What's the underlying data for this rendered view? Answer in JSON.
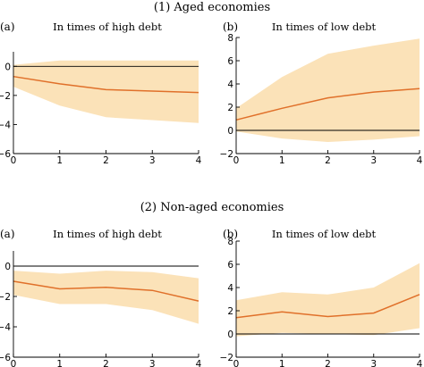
{
  "section_titles": [
    "(1) Aged economies",
    "(2) Non-aged economies"
  ],
  "chart_data": [
    {
      "type": "line",
      "tag": "(a)",
      "title": "In times of high debt",
      "x": [
        0,
        1,
        2,
        3,
        4
      ],
      "xticks": [
        0,
        1,
        2,
        3,
        4
      ],
      "ylim": [
        -6,
        1
      ],
      "yticks": [
        -6,
        -4,
        -2,
        0
      ],
      "reference_line": 0,
      "series": [
        {
          "values": [
            -0.7,
            -1.2,
            -1.6,
            -1.7,
            -1.8
          ],
          "lower": [
            -1.4,
            -2.7,
            -3.5,
            -3.7,
            -3.9
          ],
          "upper": [
            0.1,
            0.4,
            0.4,
            0.4,
            0.4
          ]
        }
      ]
    },
    {
      "type": "line",
      "tag": "(b)",
      "title": "In times of low debt",
      "x": [
        0,
        1,
        2,
        3,
        4
      ],
      "xticks": [
        0,
        1,
        2,
        3,
        4
      ],
      "ylim": [
        -2,
        8
      ],
      "yticks": [
        -2,
        0,
        2,
        4,
        6,
        8
      ],
      "reference_line": 0,
      "series": [
        {
          "values": [
            0.9,
            1.9,
            2.8,
            3.3,
            3.6
          ],
          "lower": [
            -0.1,
            -0.7,
            -1.0,
            -0.8,
            -0.5
          ],
          "upper": [
            1.9,
            4.6,
            6.6,
            7.3,
            7.9
          ]
        }
      ]
    },
    {
      "type": "line",
      "tag": "(a)",
      "title": "In times of high debt",
      "x": [
        0,
        1,
        2,
        3,
        4
      ],
      "xticks": [
        0,
        1,
        2,
        3,
        4
      ],
      "ylim": [
        -6,
        1
      ],
      "yticks": [
        -6,
        -4,
        -2,
        0
      ],
      "reference_line": 0,
      "series": [
        {
          "values": [
            -1.0,
            -1.5,
            -1.4,
            -1.6,
            -2.3
          ],
          "lower": [
            -1.9,
            -2.5,
            -2.5,
            -2.9,
            -3.8
          ],
          "upper": [
            -0.3,
            -0.5,
            -0.3,
            -0.4,
            -0.8
          ]
        }
      ]
    },
    {
      "type": "line",
      "tag": "(b)",
      "title": "In times of low debt",
      "x": [
        0,
        1,
        2,
        3,
        4
      ],
      "xticks": [
        0,
        1,
        2,
        3,
        4
      ],
      "ylim": [
        -2,
        8
      ],
      "yticks": [
        -2,
        0,
        2,
        4,
        6,
        8
      ],
      "reference_line": 0,
      "series": [
        {
          "values": [
            1.4,
            1.9,
            1.5,
            1.8,
            3.4
          ],
          "lower": [
            -0.2,
            0.1,
            0.0,
            -0.1,
            0.5
          ],
          "upper": [
            2.9,
            3.6,
            3.4,
            4.0,
            6.1
          ]
        }
      ]
    }
  ]
}
